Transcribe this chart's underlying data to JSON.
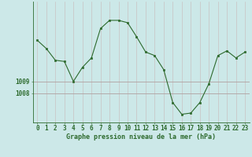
{
  "x": [
    0,
    1,
    2,
    3,
    4,
    5,
    6,
    7,
    8,
    9,
    10,
    11,
    12,
    13,
    14,
    15,
    16,
    17,
    18,
    19,
    20,
    21,
    22,
    23
  ],
  "y": [
    1012.5,
    1011.8,
    1010.8,
    1010.7,
    1009.0,
    1010.2,
    1011.0,
    1013.5,
    1014.2,
    1014.2,
    1014.0,
    1012.8,
    1011.5,
    1011.2,
    1010.0,
    1007.2,
    1006.2,
    1006.3,
    1007.2,
    1008.8,
    1011.2,
    1011.6,
    1011.0,
    1011.5
  ],
  "line_color": "#2d6a2d",
  "marker_color": "#2d6a2d",
  "bg_color": "#cce8e8",
  "grid_color_h": "#b0a0a0",
  "grid_color_v": "#c8b8b8",
  "axis_color": "#2d6a2d",
  "label_color": "#2d6a2d",
  "ytick_values": [
    1009,
    1008
  ],
  "ytick_labels": [
    "1009",
    "1008"
  ],
  "ylim": [
    1005.5,
    1015.8
  ],
  "xlim": [
    -0.5,
    23.5
  ],
  "xlabel": "Graphe pression niveau de la mer (hPa)",
  "tick_fontsize": 5.5,
  "xlabel_fontsize": 6.0
}
